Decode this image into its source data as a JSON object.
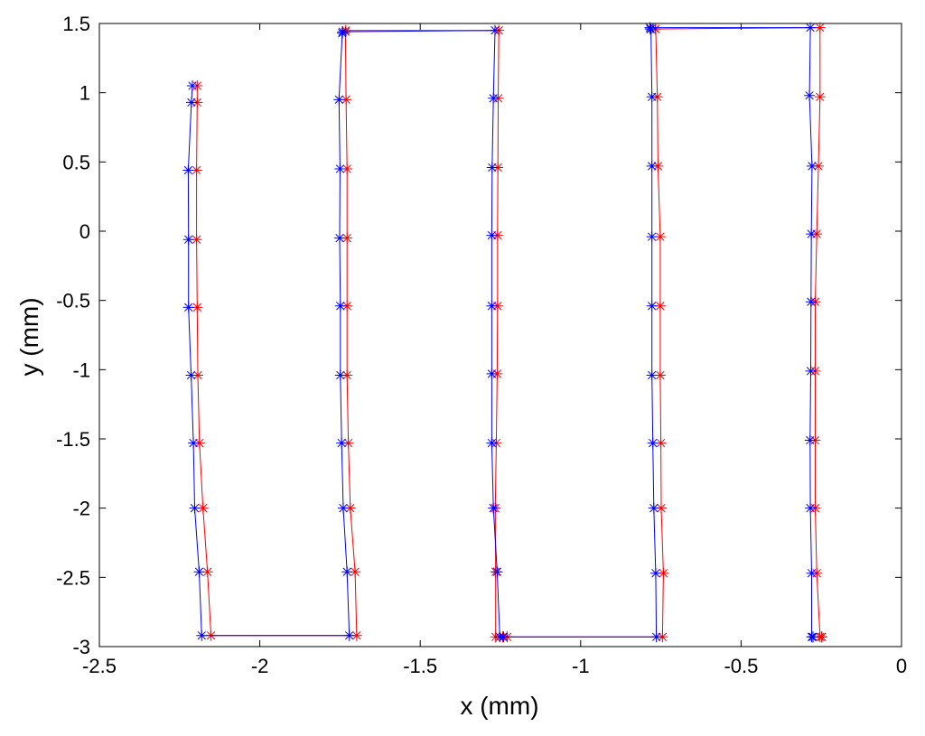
{
  "chart_data": {
    "type": "line",
    "title": "",
    "xlabel": "x (mm)",
    "ylabel": "y (mm)",
    "xlim": [
      -2.5,
      0
    ],
    "ylim": [
      -3,
      1.5
    ],
    "xticks": [
      -2.5,
      -2,
      -1.5,
      -1,
      -0.5,
      0
    ],
    "yticks": [
      1.5,
      1,
      0.5,
      0,
      -0.5,
      -1,
      -1.5,
      -2,
      -2.5,
      -3
    ],
    "xtick_labels": [
      "-2.5",
      "-2",
      "-1.5",
      "-1",
      "-0.5",
      "0"
    ],
    "ytick_labels": [
      "1.5",
      "1",
      "0.5",
      "0",
      "-0.5",
      "-1",
      "-1.5",
      "-2",
      "-2.5",
      "-3"
    ],
    "grid": false,
    "marker": "asterisk",
    "series": [
      {
        "color": "#ff0000",
        "x": [
          -2.195,
          -2.195,
          -2.197,
          -2.197,
          -2.195,
          -2.193,
          -2.188,
          -2.177,
          -2.163,
          -2.152,
          -1.698,
          -1.703,
          -1.718,
          -1.724,
          -1.728,
          -1.728,
          -1.728,
          -1.728,
          -1.731,
          -1.733,
          -1.732,
          -1.255,
          -1.257,
          -1.258,
          -1.259,
          -1.259,
          -1.26,
          -1.263,
          -1.266,
          -1.265,
          -1.265,
          -1.243,
          -1.229,
          -0.745,
          -0.742,
          -0.749,
          -0.75,
          -0.752,
          -0.752,
          -0.752,
          -0.759,
          -0.761,
          -0.766,
          -0.767,
          -0.254,
          -0.254,
          -0.259,
          -0.264,
          -0.269,
          -0.269,
          -0.269,
          -0.269,
          -0.264,
          -0.254,
          -0.248,
          -0.249
        ],
        "y": [
          1.05,
          0.93,
          0.44,
          -0.06,
          -0.55,
          -1.04,
          -1.53,
          -2.0,
          -2.46,
          -2.92,
          -2.92,
          -2.46,
          -2.0,
          -1.53,
          -1.04,
          -0.54,
          -0.05,
          0.45,
          0.95,
          1.44,
          1.45,
          1.45,
          0.96,
          0.46,
          -0.03,
          -0.54,
          -1.03,
          -1.53,
          -2.0,
          -2.46,
          -2.93,
          -2.93,
          -2.93,
          -2.93,
          -2.47,
          -2.0,
          -1.53,
          -1.04,
          -0.54,
          -0.04,
          0.47,
          0.97,
          1.46,
          1.46,
          1.47,
          0.97,
          0.47,
          -0.02,
          -0.51,
          -1.01,
          -1.51,
          -2.0,
          -2.47,
          -2.93,
          -2.93,
          -2.93
        ]
      },
      {
        "color": "#0000ff",
        "x": [
          -2.21,
          -2.213,
          -2.223,
          -2.222,
          -2.222,
          -2.214,
          -2.207,
          -2.203,
          -2.189,
          -2.181,
          -1.721,
          -1.728,
          -1.74,
          -1.745,
          -1.749,
          -1.749,
          -1.751,
          -1.75,
          -1.753,
          -1.743,
          -1.742,
          -1.267,
          -1.272,
          -1.276,
          -1.277,
          -1.277,
          -1.277,
          -1.277,
          -1.272,
          -1.26,
          -1.252,
          -1.24,
          -0.764,
          -0.766,
          -0.772,
          -0.775,
          -0.778,
          -0.778,
          -0.778,
          -0.778,
          -0.778,
          -0.781,
          -0.783,
          -0.784,
          -0.284,
          -0.287,
          -0.279,
          -0.281,
          -0.282,
          -0.283,
          -0.285,
          -0.284,
          -0.28,
          -0.28,
          -0.276,
          -0.276
        ],
        "y": [
          1.05,
          0.93,
          0.44,
          -0.06,
          -0.55,
          -1.04,
          -1.53,
          -2.0,
          -2.46,
          -2.92,
          -2.92,
          -2.46,
          -2.0,
          -1.53,
          -1.04,
          -0.54,
          -0.05,
          0.45,
          0.95,
          1.43,
          1.44,
          1.45,
          0.96,
          0.46,
          -0.03,
          -0.54,
          -1.03,
          -1.53,
          -2.0,
          -2.46,
          -2.93,
          -2.93,
          -2.93,
          -2.47,
          -2.0,
          -1.53,
          -1.04,
          -0.54,
          -0.04,
          0.47,
          0.97,
          1.46,
          1.46,
          1.47,
          1.47,
          0.98,
          0.47,
          -0.02,
          -0.51,
          -1.01,
          -1.51,
          -2.0,
          -2.47,
          -2.93,
          -2.93,
          -2.93
        ]
      }
    ]
  }
}
